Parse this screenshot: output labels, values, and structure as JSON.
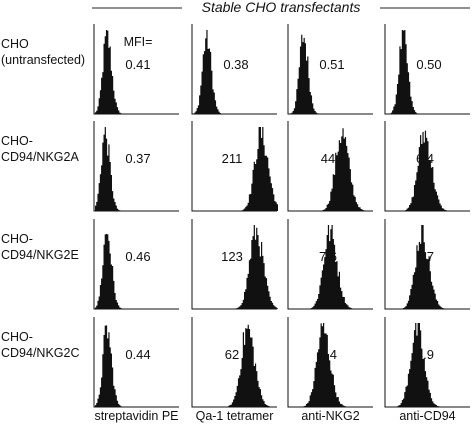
{
  "chart_data": {
    "type": "histogram-grid",
    "title": "Stable CHO transfectants",
    "mfi_label": "MFI=",
    "columns": [
      "streptavidin PE",
      "Qa-1 tetramer",
      "anti-NKG2",
      "anti-CD94"
    ],
    "rows": [
      {
        "label_lines": [
          "CHO",
          "(untransfected)"
        ],
        "mfi": [
          "0.41",
          "0.38",
          "0.51",
          "0.50"
        ],
        "peaks": [
          0.14,
          0.16,
          0.17,
          0.2
        ]
      },
      {
        "label_lines": [
          "CHO-",
          "CD94/NKG2A"
        ],
        "mfi": [
          "0.37",
          "211",
          "44",
          "6.4"
        ],
        "peaks": [
          0.12,
          0.8,
          0.62,
          0.45
        ]
      },
      {
        "label_lines": [
          "CHO-",
          "CD94/NKG2E"
        ],
        "mfi": [
          "0.46",
          "123",
          "7.6",
          "5.7"
        ],
        "peaks": [
          0.14,
          0.74,
          0.48,
          0.42
        ]
      },
      {
        "label_lines": [
          "CHO-",
          "CD94/NKG2C"
        ],
        "mfi": [
          "0.44",
          "62",
          "4.4",
          "3.9"
        ],
        "peaks": [
          0.14,
          0.64,
          0.4,
          0.36
        ]
      }
    ],
    "x_scale": "log fluorescence (peak position as fraction of axis)",
    "grid": false,
    "legend": "none"
  }
}
